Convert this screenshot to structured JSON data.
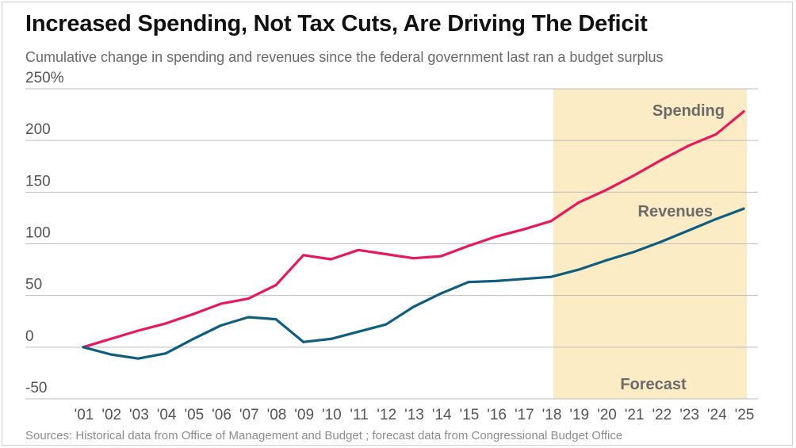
{
  "title": "Increased Spending, Not Tax Cuts, Are Driving The Deficit",
  "subtitle": "Cumulative change in spending and revenues since the federal government last ran a budget surplus",
  "source": "Sources: Historical data from Office of Management and Budget ; forecast data from Congressional Budget Office",
  "colors": {
    "spending": "#e8185a",
    "revenues": "#0f5d80",
    "forecast_band": "#fbecc6",
    "grid": "#bdbdbd",
    "text": "#555555"
  },
  "chart_data": {
    "type": "line",
    "title": "Increased Spending, Not Tax Cuts, Are Driving The Deficit",
    "subtitle": "Cumulative change in spending and revenues since the federal government last ran a budget surplus",
    "xlabel": "",
    "ylabel": "",
    "ylim": [
      -50,
      250
    ],
    "y_ticks": [
      -50,
      0,
      50,
      100,
      150,
      200,
      250
    ],
    "y_tick_labels": [
      "-50",
      "0",
      "50",
      "100",
      "150",
      "200",
      "250%"
    ],
    "grid": true,
    "categories": [
      "'01",
      "'02",
      "'03",
      "'04",
      "'05",
      "'06",
      "'07",
      "'08",
      "'09",
      "'10",
      "'11",
      "'12",
      "'13",
      "'14",
      "'15",
      "'16",
      "'17",
      "'18",
      "'19",
      "'20",
      "'21",
      "'22",
      "'23",
      "'24",
      "'25"
    ],
    "series": [
      {
        "name": "Spending",
        "label": "Spending",
        "color": "#e8185a",
        "values": [
          0,
          8,
          16,
          23,
          32,
          42,
          47,
          60,
          89,
          85,
          94,
          90,
          86,
          88,
          98,
          107,
          114,
          122,
          140,
          152,
          166,
          181,
          195,
          206,
          228
        ]
      },
      {
        "name": "Revenues",
        "label": "Revenues",
        "color": "#0f5d80",
        "values": [
          0,
          -7,
          -11,
          -6,
          8,
          21,
          29,
          27,
          5,
          8,
          15,
          22,
          39,
          52,
          63,
          64,
          66,
          68,
          75,
          84,
          92,
          102,
          113,
          124,
          134
        ]
      }
    ],
    "forecast": {
      "label": "Forecast",
      "start": "'18",
      "end": "'25"
    }
  }
}
